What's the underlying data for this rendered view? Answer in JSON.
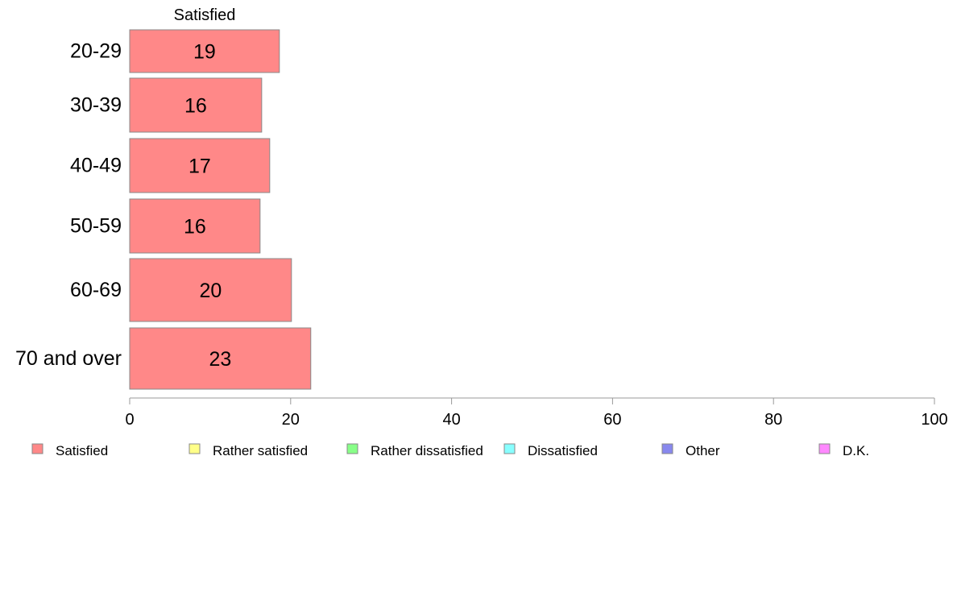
{
  "chart_data": {
    "type": "bar",
    "orientation": "horizontal",
    "stacked": true,
    "categories": [
      "20-29",
      "30-39",
      "40-49",
      "50-59",
      "60-69",
      "70 and over"
    ],
    "series": [
      {
        "name": "Satisfied",
        "color": "#ff8888",
        "values": [
          18.6,
          16.4,
          17.4,
          16.2,
          20.1,
          22.5
        ],
        "labels": [
          "19",
          "16",
          "17",
          "16",
          "20",
          "23"
        ]
      }
    ],
    "column_header": "Satisfied",
    "xlim": [
      0,
      100
    ],
    "xticks": [
      "0",
      "20",
      "40",
      "60",
      "80",
      "100"
    ],
    "grid": false,
    "legend": {
      "position": "bottom",
      "entries": [
        {
          "label": "Satisfied",
          "color": "#ff8888"
        },
        {
          "label": "Rather satisfied",
          "color": "#ffff88"
        },
        {
          "label": "Rather dissatisfied",
          "color": "#88ff88"
        },
        {
          "label": "Dissatisfied",
          "color": "#88ffff"
        },
        {
          "label": "Other",
          "color": "#8888ee"
        },
        {
          "label": "D.K.",
          "color": "#ff88ff"
        }
      ]
    }
  }
}
